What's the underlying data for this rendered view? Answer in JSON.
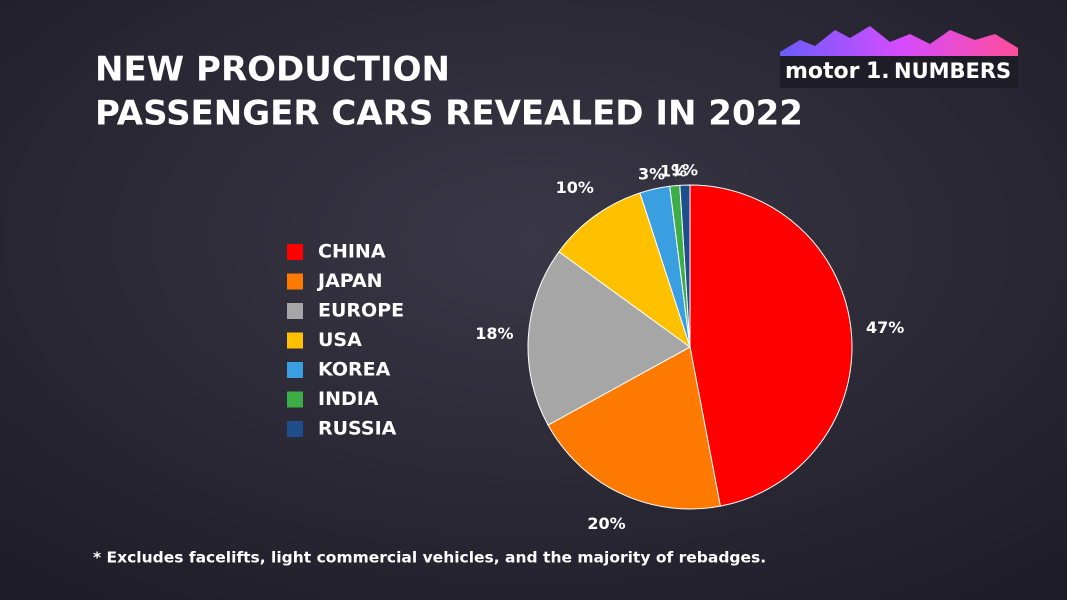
{
  "chart_data": {
    "type": "pie",
    "title": [
      "NEW PRODUCTION",
      "PASSENGER CARS REVEALED IN 2022"
    ],
    "categories": [
      "CHINA",
      "JAPAN",
      "EUROPE",
      "USA",
      "KOREA",
      "INDIA",
      "RUSSIA"
    ],
    "values": [
      47,
      20,
      18,
      10,
      3,
      1,
      1
    ],
    "value_labels": [
      "47%",
      "20%",
      "18%",
      "10%",
      "3%",
      "1%",
      "1%"
    ],
    "colors": [
      "#ff0000",
      "#ff7a00",
      "#a6a6a6",
      "#ffc000",
      "#3a9fe0",
      "#3cae45",
      "#1f4e8c"
    ],
    "footnote": "* Excludes facelifts, light commercial vehicles, and the majority of rebadges."
  },
  "logo": {
    "brand": "motor",
    "mark": "1.",
    "product": "NUMBERS"
  }
}
